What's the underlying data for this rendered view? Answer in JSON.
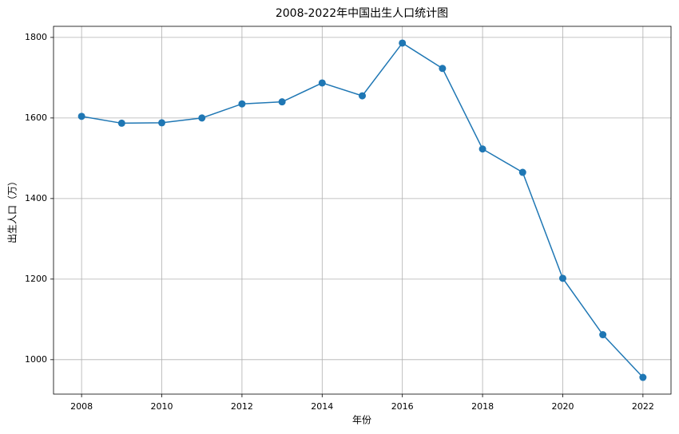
{
  "chart_data": {
    "type": "line",
    "title": "2008-2022年中国出生人口统计图",
    "x_label": "年份",
    "y_label": "出生人口（万）",
    "x": [
      2008,
      2009,
      2010,
      2011,
      2012,
      2013,
      2014,
      2015,
      2016,
      2017,
      2018,
      2019,
      2020,
      2021,
      2022
    ],
    "series": [
      {
        "name": "出生人口",
        "color": "#1f77b4",
        "values": [
          1604,
          1587,
          1588,
          1600,
          1635,
          1640,
          1687,
          1655,
          1786,
          1723,
          1523,
          1465,
          1202,
          1062,
          956
        ]
      }
    ],
    "xlim": [
      2007.3,
      2022.7
    ],
    "xticks": [
      2008,
      2010,
      2012,
      2014,
      2016,
      2018,
      2020,
      2022
    ],
    "ylim": [
      914.5,
      1827.5
    ],
    "yticks": [
      1000,
      1200,
      1400,
      1600,
      1800
    ],
    "grid": true,
    "markers": true
  }
}
